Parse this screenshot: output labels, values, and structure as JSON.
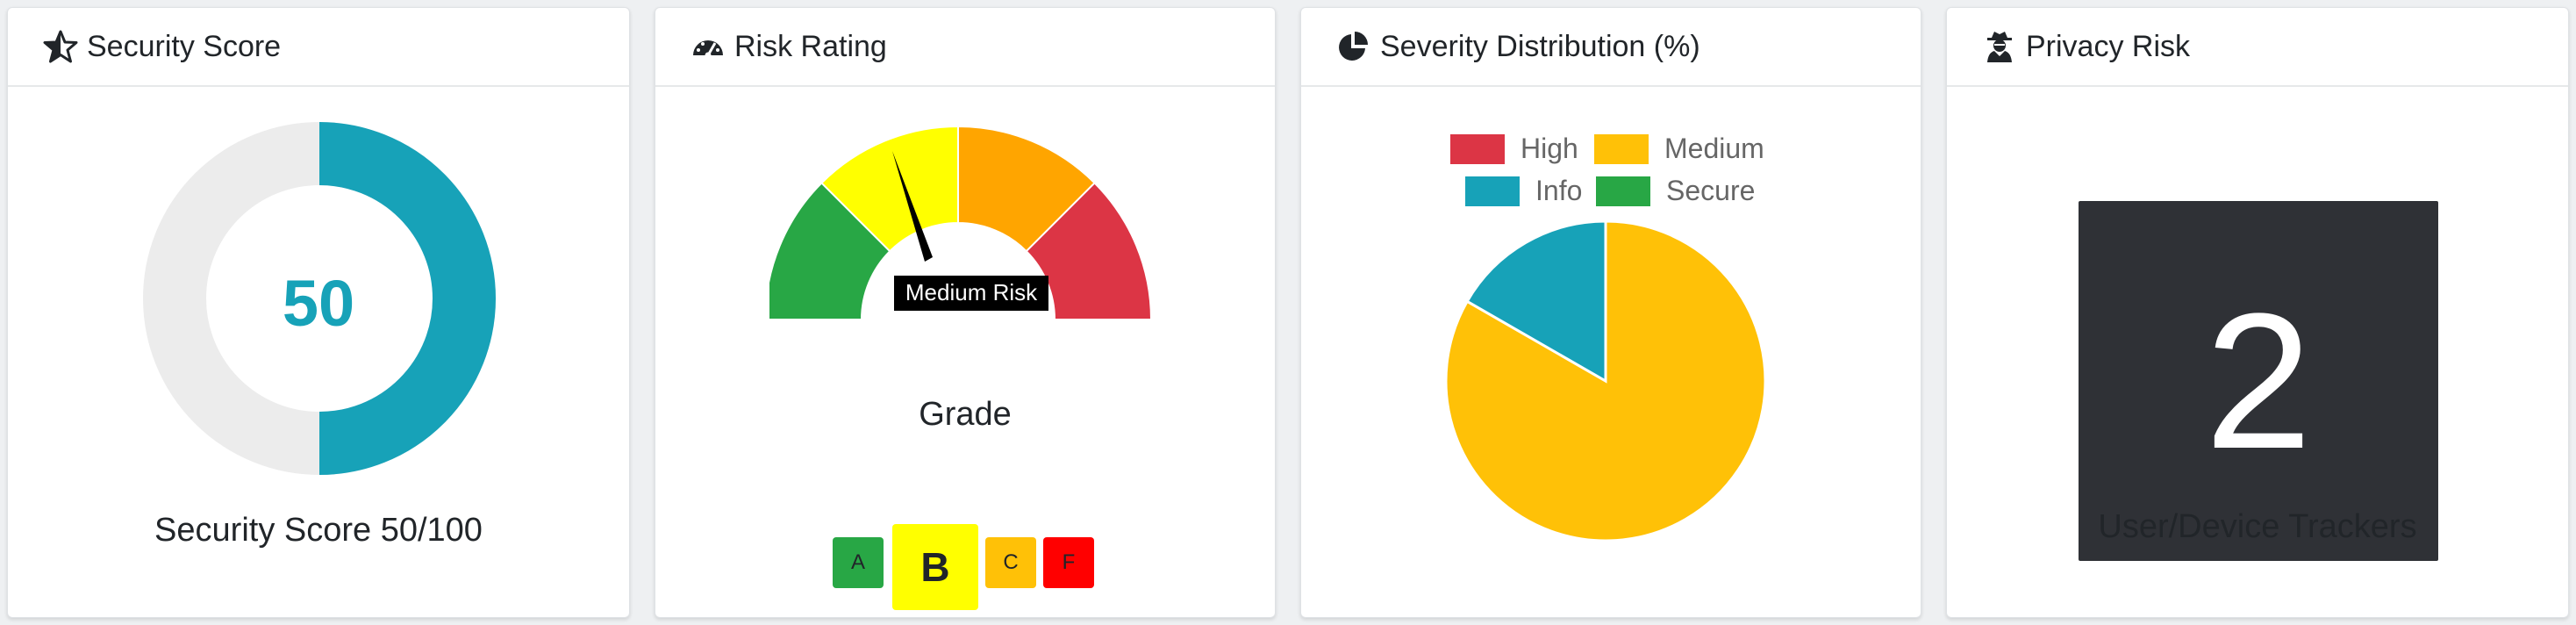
{
  "cards": {
    "security": {
      "title": "Security Score",
      "icon": "star-half-icon",
      "score_value": "50",
      "score_fraction": 0.5,
      "caption": "Security Score 50/100",
      "colors": {
        "fill": "#17a2b8",
        "track": "#ececec"
      }
    },
    "risk": {
      "title": "Risk Rating",
      "icon": "tachometer-icon",
      "gauge_label": "Medium Risk",
      "gauge_segment_colors": [
        "#28a745",
        "#ffff00",
        "#ffa500",
        "#dc3545"
      ],
      "grade_title": "Grade",
      "grades": [
        {
          "label": "A",
          "color": "#28a745",
          "selected": false
        },
        {
          "label": "B",
          "color": "#ffff00",
          "selected": true
        },
        {
          "label": "C",
          "color": "#ffc107",
          "selected": false
        },
        {
          "label": "F",
          "color": "#ff0000",
          "selected": false
        }
      ]
    },
    "severity": {
      "title": "Severity Distribution (%)",
      "icon": "pie-chart-icon"
    },
    "privacy": {
      "title": "Privacy Risk",
      "icon": "user-secret-icon",
      "value": "2",
      "caption": "User/Device Trackers"
    }
  },
  "chart_data": {
    "type": "pie",
    "categories": [
      "High",
      "Medium",
      "Info",
      "Secure"
    ],
    "values": [
      0,
      83.3,
      16.7,
      0
    ],
    "colors": [
      "#dc3545",
      "#ffc107",
      "#17a2b8",
      "#28a745"
    ],
    "legend_position": "top"
  }
}
